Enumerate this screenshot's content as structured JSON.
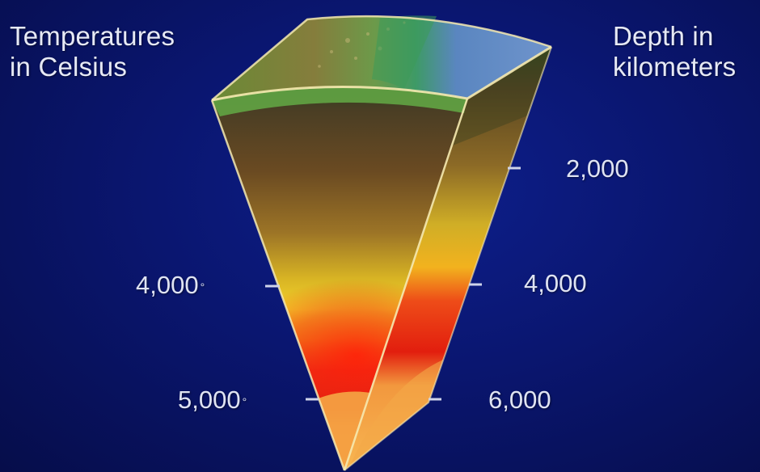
{
  "left_heading": {
    "line1": "Temperatures",
    "line2": "in Celsius"
  },
  "right_heading": {
    "line1": "Depth in",
    "line2": "kilometers"
  },
  "temperature_marks": [
    {
      "value": "4,000",
      "degree_symbol": "°"
    },
    {
      "value": "5,000",
      "degree_symbol": "°"
    }
  ],
  "depth_marks": [
    {
      "value": "2,000"
    },
    {
      "value": "4,000"
    },
    {
      "value": "6,000"
    }
  ],
  "colors": {
    "background": "#0a1670",
    "crust_green": "#5fa040",
    "ocean_blue": "#5a86c0",
    "mantle_brown": "#7a5528",
    "outer_core_yellow": "#f0c020",
    "core_red": "#e82010",
    "inner_core_orange": "#f6a040",
    "edge_highlight": "#f6e8a8"
  }
}
